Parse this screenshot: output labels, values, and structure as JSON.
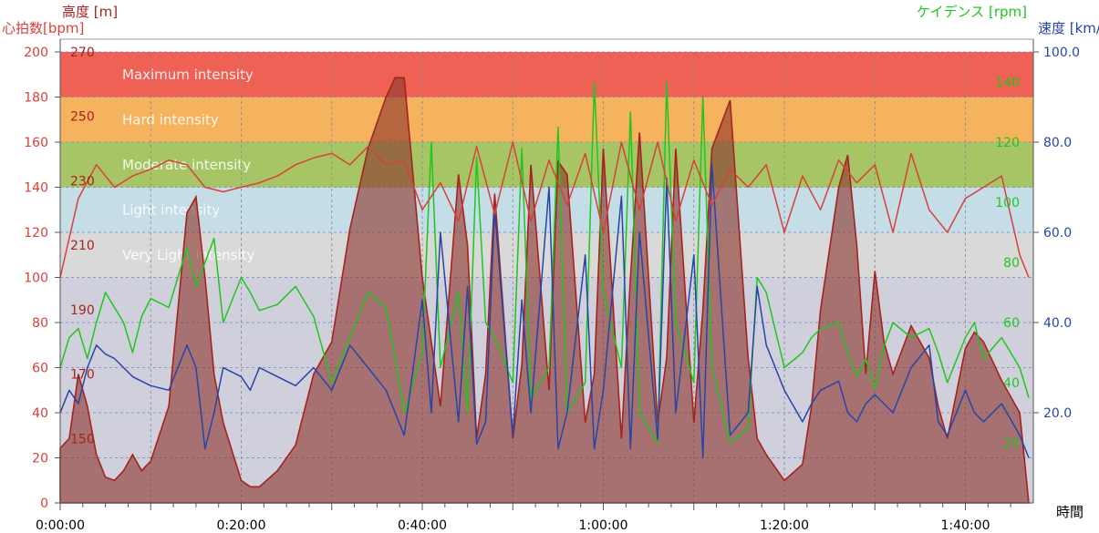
{
  "chart_data": {
    "type": "line",
    "axes": {
      "x": {
        "label": "時間",
        "min": 0,
        "max": 107,
        "unit": "minutes",
        "ticks": [
          0,
          20,
          40,
          60,
          80,
          100
        ],
        "tick_labels": [
          "0:00:00",
          "0:20:00",
          "0:40:00",
          "1:00:00",
          "1:20:00",
          "1:40:00"
        ]
      },
      "heart_rate": {
        "label": "心拍数[bpm]",
        "min": 0,
        "max": 200,
        "ticks": [
          0,
          20,
          40,
          60,
          80,
          100,
          120,
          140,
          160,
          180,
          200
        ]
      },
      "altitude": {
        "label": "高度 [m]",
        "min": 130,
        "max": 270,
        "ticks": [
          150,
          170,
          190,
          210,
          230,
          250,
          270
        ]
      },
      "cadence": {
        "label": "ケイデンス [rpm]",
        "min": 0,
        "max": 150,
        "ticks": [
          20,
          40,
          60,
          80,
          100,
          120,
          140
        ]
      },
      "speed": {
        "label": "速度 [km/h]",
        "min": 0,
        "max": 100,
        "ticks": [
          20.0,
          40.0,
          60.0,
          80.0,
          100.0
        ],
        "tick_labels": [
          "20.0",
          "40.0",
          "60.0",
          "80.0",
          "100.0"
        ]
      }
    },
    "zones": [
      {
        "name": "Maximum intensity",
        "hr_min": 180,
        "hr_max": 200,
        "color": "#ef6155"
      },
      {
        "name": "Hard intensity",
        "hr_min": 160,
        "hr_max": 180,
        "color": "#f6b35e"
      },
      {
        "name": "Moderate intensity",
        "hr_min": 140,
        "hr_max": 160,
        "color": "#a7c565"
      },
      {
        "name": "Light intensity",
        "hr_min": 120,
        "hr_max": 140,
        "color": "#c4dde7"
      },
      {
        "name": "Very Light intensity",
        "hr_min": 100,
        "hr_max": 120,
        "color": "#d9d9d9"
      }
    ],
    "series": [
      {
        "name": "心拍数",
        "axis": "heart_rate",
        "color": "#d8403a",
        "x": [
          0,
          2,
          4,
          6,
          8,
          10,
          12,
          14,
          16,
          18,
          20,
          22,
          24,
          26,
          28,
          30,
          32,
          34,
          36,
          38,
          40,
          42,
          44,
          46,
          48,
          50,
          52,
          54,
          56,
          58,
          60,
          62,
          64,
          66,
          68,
          70,
          72,
          74,
          76,
          78,
          80,
          82,
          84,
          86,
          88,
          90,
          92,
          94,
          96,
          98,
          100,
          102,
          104,
          106,
          107
        ],
        "values": [
          100,
          135,
          150,
          140,
          145,
          148,
          152,
          150,
          140,
          138,
          140,
          142,
          145,
          150,
          153,
          155,
          150,
          158,
          150,
          152,
          130,
          142,
          125,
          158,
          128,
          160,
          125,
          152,
          132,
          155,
          120,
          160,
          130,
          160,
          125,
          152,
          132,
          148,
          140,
          150,
          120,
          145,
          130,
          152,
          142,
          150,
          120,
          155,
          130,
          120,
          135,
          140,
          145,
          110,
          100
        ]
      },
      {
        "name": "高度",
        "axis": "altitude",
        "color": "#a5231f",
        "x": [
          0,
          1,
          2,
          3,
          4,
          5,
          6,
          7,
          8,
          9,
          10,
          12,
          14,
          15,
          16,
          17,
          18,
          20,
          21,
          22,
          24,
          26,
          28,
          30,
          32,
          34,
          36,
          37,
          38,
          40,
          41,
          42,
          44,
          45,
          46,
          47,
          48,
          50,
          51,
          52,
          54,
          55,
          56,
          58,
          59,
          60,
          62,
          63,
          64,
          66,
          67,
          68,
          70,
          71,
          72,
          74,
          76,
          77,
          78,
          80,
          82,
          83,
          84,
          86,
          87,
          88,
          89,
          90,
          91,
          92,
          94,
          96,
          97,
          98,
          100,
          101,
          102,
          104,
          106,
          107
        ],
        "values": [
          147,
          150,
          170,
          160,
          145,
          138,
          137,
          140,
          145,
          140,
          143,
          160,
          220,
          225,
          200,
          170,
          155,
          137,
          135,
          135,
          140,
          148,
          170,
          180,
          215,
          240,
          256,
          262,
          262,
          200,
          180,
          160,
          232,
          210,
          150,
          170,
          226,
          150,
          173,
          235,
          165,
          236,
          232,
          155,
          170,
          240,
          150,
          200,
          245,
          155,
          175,
          240,
          155,
          190,
          240,
          255,
          175,
          150,
          145,
          137,
          142,
          160,
          190,
          228,
          238,
          210,
          170,
          202,
          180,
          170,
          185,
          175,
          160,
          150,
          178,
          183,
          180,
          168,
          158,
          130
        ]
      },
      {
        "name": "ケイデンス",
        "axis": "cadence",
        "color": "#1ec61e",
        "x": [
          0,
          1,
          2,
          3,
          4,
          5,
          6,
          7,
          8,
          9,
          10,
          12,
          14,
          15,
          16,
          17,
          18,
          20,
          21,
          22,
          24,
          26,
          28,
          30,
          32,
          34,
          36,
          37,
          38,
          40,
          41,
          42,
          44,
          45,
          46,
          47,
          48,
          50,
          51,
          52,
          54,
          55,
          56,
          58,
          59,
          60,
          62,
          63,
          64,
          66,
          67,
          68,
          70,
          71,
          72,
          74,
          76,
          77,
          78,
          80,
          82,
          83,
          84,
          86,
          87,
          88,
          89,
          90,
          91,
          92,
          94,
          96,
          97,
          98,
          100,
          101,
          102,
          104,
          106,
          107
        ],
        "values": [
          45,
          55,
          58,
          48,
          60,
          70,
          65,
          60,
          50,
          62,
          68,
          65,
          85,
          72,
          80,
          88,
          60,
          75,
          70,
          64,
          66,
          72,
          62,
          40,
          55,
          70,
          65,
          48,
          30,
          50,
          120,
          45,
          70,
          30,
          115,
          60,
          55,
          40,
          118,
          35,
          45,
          125,
          30,
          40,
          140,
          70,
          45,
          130,
          30,
          20,
          140,
          60,
          40,
          135,
          45,
          20,
          25,
          75,
          70,
          45,
          50,
          55,
          58,
          60,
          50,
          42,
          48,
          38,
          52,
          60,
          55,
          58,
          50,
          40,
          55,
          60,
          48,
          55,
          45,
          35
        ]
      },
      {
        "name": "速度",
        "axis": "speed",
        "color": "#2745a8",
        "x": [
          0,
          1,
          2,
          3,
          4,
          5,
          6,
          7,
          8,
          9,
          10,
          12,
          14,
          15,
          16,
          17,
          18,
          20,
          21,
          22,
          24,
          26,
          28,
          30,
          32,
          34,
          36,
          37,
          38,
          40,
          41,
          42,
          44,
          45,
          46,
          47,
          48,
          50,
          51,
          52,
          54,
          55,
          56,
          58,
          59,
          60,
          62,
          63,
          64,
          66,
          67,
          68,
          70,
          71,
          72,
          74,
          76,
          77,
          78,
          80,
          82,
          83,
          84,
          86,
          87,
          88,
          89,
          90,
          91,
          92,
          94,
          96,
          97,
          98,
          100,
          101,
          102,
          104,
          106,
          107
        ],
        "values": [
          20,
          25,
          22,
          30,
          35,
          33,
          32,
          30,
          28,
          27,
          26,
          25,
          35,
          30,
          12,
          20,
          30,
          28,
          25,
          30,
          28,
          26,
          30,
          25,
          35,
          30,
          25,
          20,
          15,
          45,
          20,
          60,
          18,
          48,
          13,
          18,
          65,
          15,
          45,
          20,
          70,
          12,
          20,
          55,
          12,
          25,
          68,
          12,
          60,
          14,
          72,
          20,
          55,
          10,
          75,
          15,
          20,
          48,
          35,
          25,
          18,
          22,
          25,
          27,
          20,
          18,
          22,
          24,
          22,
          20,
          30,
          35,
          18,
          15,
          25,
          20,
          18,
          22,
          15,
          10
        ]
      }
    ]
  }
}
